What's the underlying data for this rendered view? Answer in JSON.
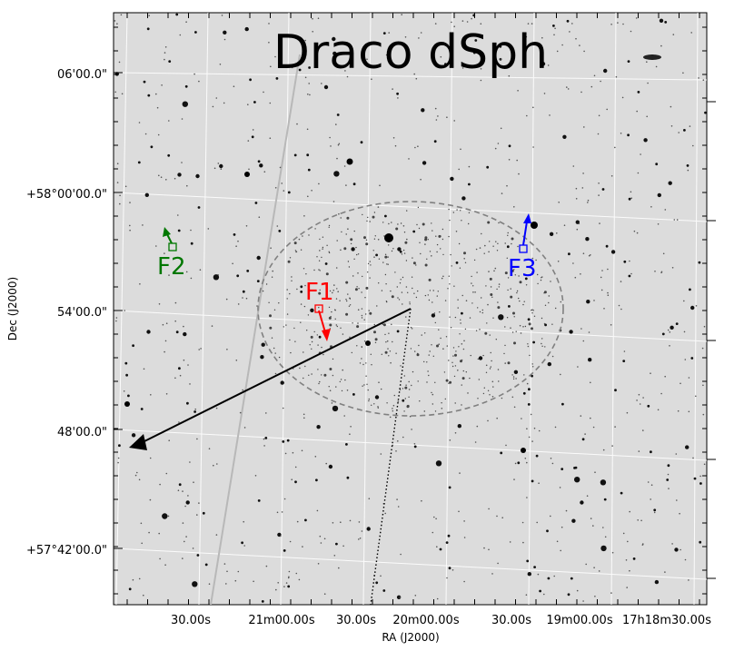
{
  "title": "Draco dSph",
  "axes": {
    "xlabel": "RA (J2000)",
    "ylabel": "Dec (J2000)",
    "x_ticks": [
      "30.00s",
      "21m00.00s",
      "30.00s",
      "20m00.00s",
      "30.00s",
      "19m00.00s",
      "17h18m30.00s"
    ],
    "y_ticks": [
      "06'00.0\"",
      "+58°00'00.0\"",
      "54'00.0\"",
      "48'00.0\"",
      "+57°42'00.0\""
    ]
  },
  "fields": [
    {
      "label": "F1",
      "color": "#ff0000"
    },
    {
      "label": "F2",
      "color": "#007700"
    },
    {
      "label": "F3",
      "color": "#0000ff"
    }
  ],
  "colors": {
    "sky_background": "#dcdcdc",
    "grid": "#ffffff",
    "ellipse": "#808080",
    "motion_arrow": "#000000"
  }
}
